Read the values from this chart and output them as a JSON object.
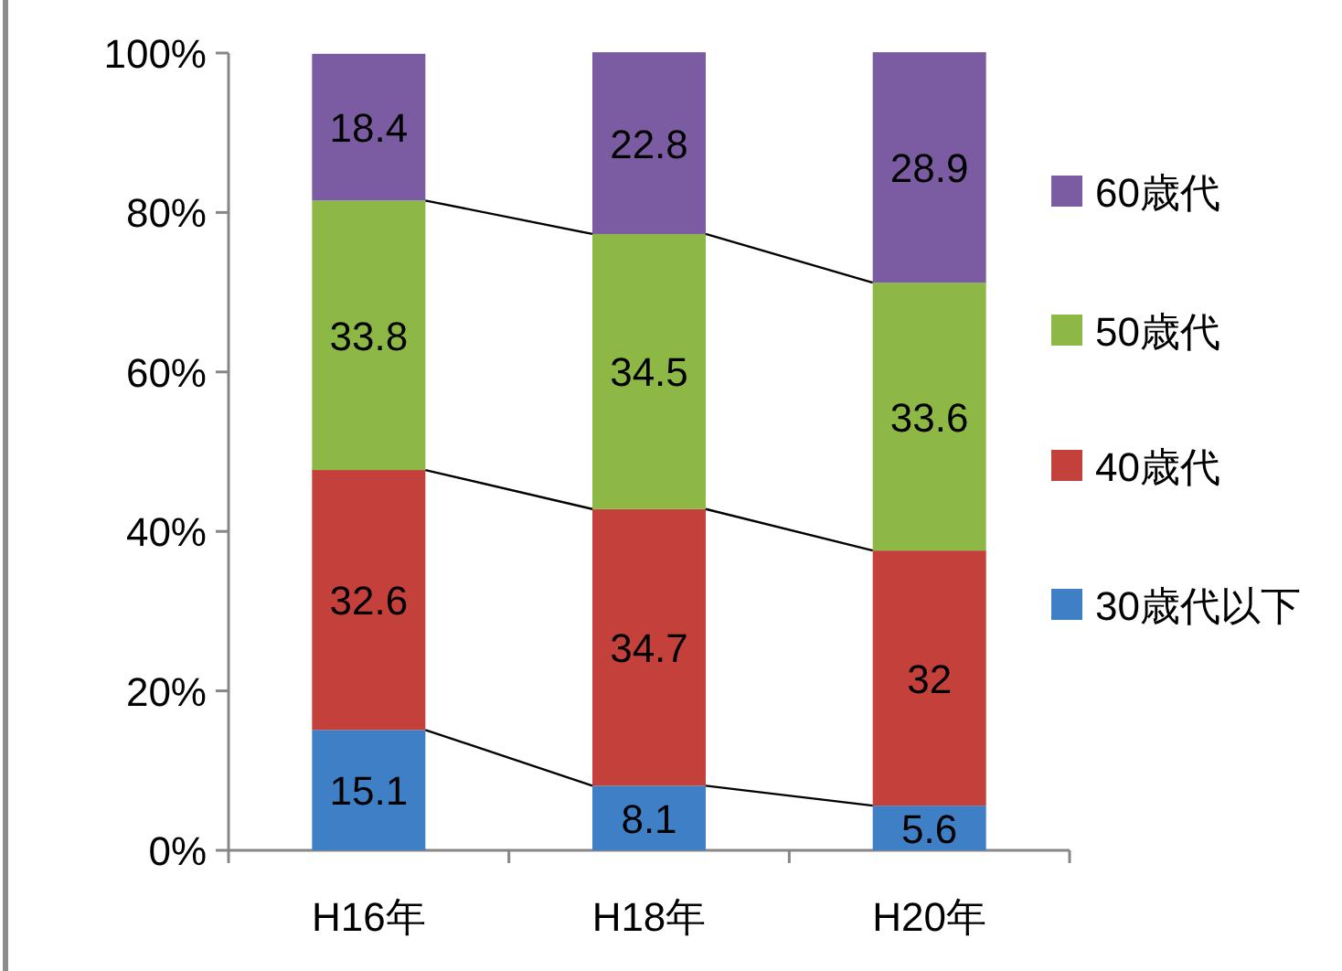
{
  "chart_data": {
    "type": "bar",
    "stacked": true,
    "categories": [
      "H16年",
      "H18年",
      "H20年"
    ],
    "series": [
      {
        "name": "30歳代以下",
        "color": "#3f7fc6",
        "values": [
          15.1,
          8.1,
          5.6
        ]
      },
      {
        "name": "40歳代",
        "color": "#c4403b",
        "values": [
          32.6,
          34.7,
          32
        ]
      },
      {
        "name": "50歳代",
        "color": "#8db846",
        "values": [
          33.8,
          34.5,
          33.6
        ]
      },
      {
        "name": "60歳代",
        "color": "#7b5ba1",
        "values": [
          18.4,
          22.8,
          28.9
        ]
      }
    ],
    "ylim": [
      0,
      100
    ],
    "yticks": [
      {
        "value": 0,
        "label": "0%"
      },
      {
        "value": 20,
        "label": "20%"
      },
      {
        "value": 40,
        "label": "40%"
      },
      {
        "value": 60,
        "label": "60%"
      },
      {
        "value": 80,
        "label": "80%"
      },
      {
        "value": 100,
        "label": "100%"
      }
    ],
    "data_labels": true,
    "grid": false,
    "legend": "right"
  }
}
